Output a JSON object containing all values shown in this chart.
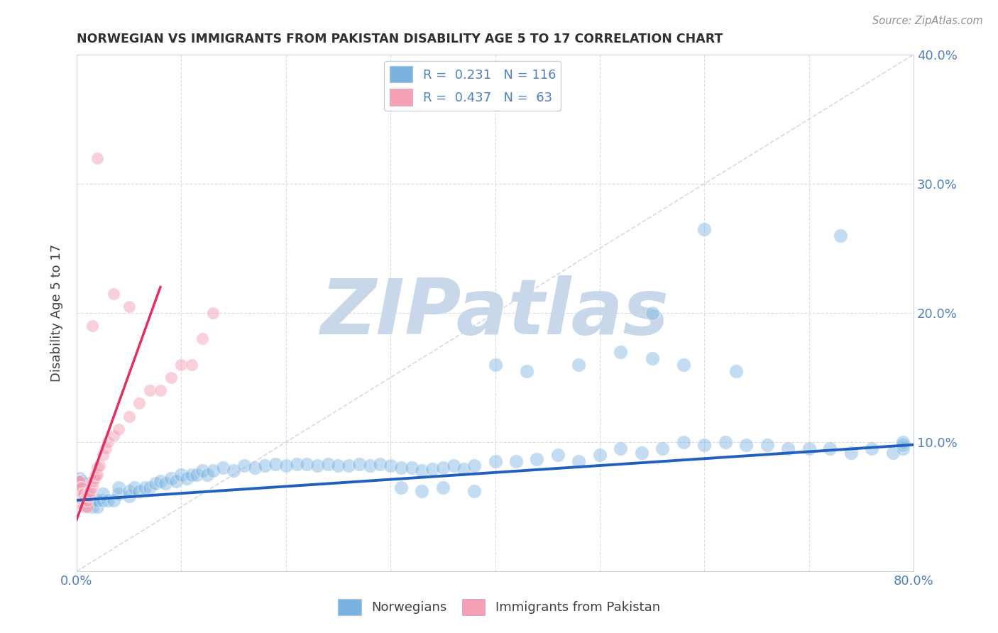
{
  "title": "NORWEGIAN VS IMMIGRANTS FROM PAKISTAN DISABILITY AGE 5 TO 17 CORRELATION CHART",
  "source": "Source: ZipAtlas.com",
  "ylabel": "Disability Age 5 to 17",
  "xlim": [
    0.0,
    0.8
  ],
  "ylim": [
    0.0,
    0.4
  ],
  "xticks": [
    0.0,
    0.1,
    0.2,
    0.3,
    0.4,
    0.5,
    0.6,
    0.7,
    0.8
  ],
  "xticklabels": [
    "0.0%",
    "",
    "",
    "",
    "",
    "",
    "",
    "",
    "80.0%"
  ],
  "yticks": [
    0.0,
    0.1,
    0.2,
    0.3,
    0.4
  ],
  "yticklabels_right": [
    "",
    "10.0%",
    "20.0%",
    "30.0%",
    "40.0%"
  ],
  "R_norwegian": 0.231,
  "N_norwegian": 116,
  "R_pakistan": 0.437,
  "N_pakistan": 63,
  "blue_color": "#7ab3e0",
  "pink_color": "#f4a0b5",
  "blue_scatter_edge": "white",
  "pink_scatter_edge": "white",
  "blue_line_color": "#2060c0",
  "pink_line_color": "#e03060",
  "diag_line_color": "#c0ccdd",
  "watermark": "ZIPatlas",
  "watermark_color": "#c8d8ea",
  "legend_label_1": "Norwegians",
  "legend_label_2": "Immigrants from Pakistan",
  "background_color": "#ffffff",
  "grid_color": "#d0d8e8",
  "title_color": "#303030",
  "ylabel_color": "#404040",
  "tick_color": "#5080c0",
  "source_color": "#909090",
  "blue_nor_x": [
    0.002,
    0.003,
    0.003,
    0.003,
    0.004,
    0.004,
    0.004,
    0.005,
    0.005,
    0.005,
    0.005,
    0.006,
    0.006,
    0.006,
    0.007,
    0.007,
    0.007,
    0.008,
    0.008,
    0.009,
    0.009,
    0.01,
    0.01,
    0.01,
    0.012,
    0.012,
    0.015,
    0.015,
    0.02,
    0.02,
    0.025,
    0.025,
    0.03,
    0.035,
    0.04,
    0.04,
    0.05,
    0.05,
    0.055,
    0.06,
    0.065,
    0.07,
    0.075,
    0.08,
    0.085,
    0.09,
    0.095,
    0.1,
    0.105,
    0.11,
    0.115,
    0.12,
    0.125,
    0.13,
    0.14,
    0.15,
    0.16,
    0.17,
    0.18,
    0.19,
    0.2,
    0.21,
    0.22,
    0.23,
    0.24,
    0.25,
    0.26,
    0.27,
    0.28,
    0.29,
    0.3,
    0.31,
    0.32,
    0.33,
    0.34,
    0.35,
    0.36,
    0.37,
    0.38,
    0.4,
    0.42,
    0.44,
    0.46,
    0.48,
    0.5,
    0.52,
    0.54,
    0.56,
    0.58,
    0.6,
    0.62,
    0.64,
    0.66,
    0.68,
    0.7,
    0.72,
    0.74,
    0.76,
    0.78,
    0.79,
    0.79,
    0.79,
    0.6,
    0.63,
    0.55,
    0.73,
    0.55,
    0.58,
    0.52,
    0.48,
    0.43,
    0.4,
    0.38,
    0.35,
    0.33,
    0.31
  ],
  "blue_nor_y": [
    0.07,
    0.065,
    0.068,
    0.072,
    0.06,
    0.065,
    0.07,
    0.055,
    0.06,
    0.065,
    0.07,
    0.058,
    0.062,
    0.068,
    0.055,
    0.06,
    0.065,
    0.055,
    0.06,
    0.052,
    0.058,
    0.05,
    0.055,
    0.06,
    0.052,
    0.056,
    0.05,
    0.055,
    0.05,
    0.055,
    0.055,
    0.06,
    0.055,
    0.055,
    0.06,
    0.065,
    0.058,
    0.062,
    0.065,
    0.062,
    0.065,
    0.065,
    0.068,
    0.07,
    0.068,
    0.072,
    0.07,
    0.075,
    0.072,
    0.075,
    0.075,
    0.078,
    0.075,
    0.078,
    0.08,
    0.078,
    0.082,
    0.08,
    0.082,
    0.083,
    0.082,
    0.083,
    0.083,
    0.082,
    0.083,
    0.082,
    0.082,
    0.083,
    0.082,
    0.083,
    0.082,
    0.08,
    0.08,
    0.078,
    0.079,
    0.08,
    0.082,
    0.079,
    0.082,
    0.085,
    0.085,
    0.087,
    0.09,
    0.085,
    0.09,
    0.095,
    0.092,
    0.095,
    0.1,
    0.098,
    0.1,
    0.098,
    0.098,
    0.095,
    0.095,
    0.095,
    0.092,
    0.095,
    0.092,
    0.095,
    0.098,
    0.1,
    0.265,
    0.155,
    0.2,
    0.26,
    0.165,
    0.16,
    0.17,
    0.16,
    0.155,
    0.16,
    0.062,
    0.065,
    0.062,
    0.065
  ],
  "pink_pak_x": [
    0.001,
    0.001,
    0.001,
    0.002,
    0.002,
    0.002,
    0.002,
    0.003,
    0.003,
    0.003,
    0.003,
    0.003,
    0.004,
    0.004,
    0.004,
    0.004,
    0.005,
    0.005,
    0.005,
    0.005,
    0.006,
    0.006,
    0.006,
    0.007,
    0.007,
    0.007,
    0.008,
    0.008,
    0.009,
    0.009,
    0.01,
    0.01,
    0.01,
    0.011,
    0.012,
    0.012,
    0.013,
    0.015,
    0.015,
    0.016,
    0.017,
    0.018,
    0.02,
    0.02,
    0.022,
    0.025,
    0.028,
    0.03,
    0.035,
    0.04,
    0.05,
    0.06,
    0.07,
    0.08,
    0.09,
    0.1,
    0.11,
    0.12,
    0.13,
    0.05,
    0.035,
    0.02,
    0.015
  ],
  "pink_pak_y": [
    0.06,
    0.065,
    0.07,
    0.055,
    0.06,
    0.065,
    0.07,
    0.052,
    0.055,
    0.06,
    0.065,
    0.07,
    0.052,
    0.055,
    0.06,
    0.065,
    0.052,
    0.055,
    0.06,
    0.065,
    0.052,
    0.055,
    0.06,
    0.05,
    0.055,
    0.06,
    0.052,
    0.056,
    0.05,
    0.055,
    0.05,
    0.055,
    0.06,
    0.058,
    0.058,
    0.062,
    0.062,
    0.065,
    0.07,
    0.07,
    0.072,
    0.075,
    0.075,
    0.08,
    0.082,
    0.09,
    0.095,
    0.1,
    0.105,
    0.11,
    0.12,
    0.13,
    0.14,
    0.14,
    0.15,
    0.16,
    0.16,
    0.18,
    0.2,
    0.205,
    0.215,
    0.32,
    0.19
  ],
  "blue_line_x": [
    0.0,
    0.8
  ],
  "blue_line_y": [
    0.055,
    0.098
  ],
  "pink_line_x": [
    0.0,
    0.08
  ],
  "pink_line_y": [
    0.04,
    0.22
  ]
}
